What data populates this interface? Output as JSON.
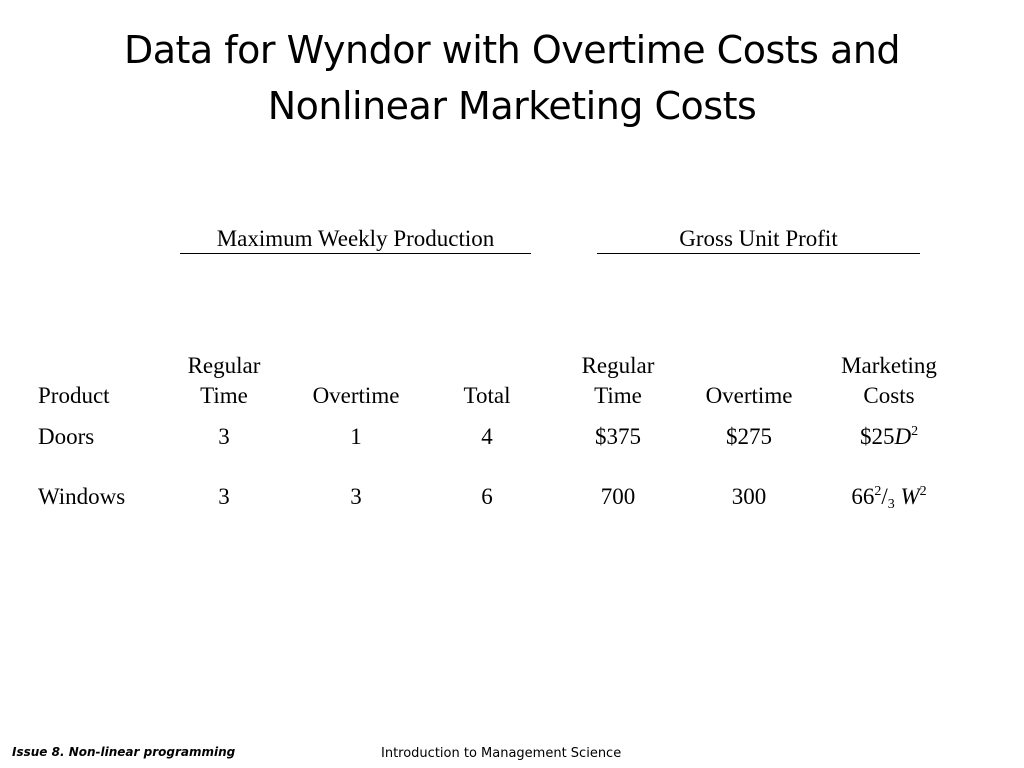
{
  "slide": {
    "title_line1": "Data for Wyndor with Overtime Costs and",
    "title_line2": "Nonlinear Marketing Costs"
  },
  "group_headers": {
    "production": "Maximum Weekly Production",
    "profit": "Gross Unit Profit"
  },
  "columns": {
    "product": "Product",
    "regular_time_1_line1": "Regular",
    "regular_time_1_line2": "Time",
    "overtime_1": "Overtime",
    "total": "Total",
    "regular_time_2_line1": "Regular",
    "regular_time_2_line2": "Time",
    "overtime_2": "Overtime",
    "marketing_line1": "Marketing",
    "marketing_line2": "Costs"
  },
  "rows": [
    {
      "product": "Doors",
      "regular_time": "3",
      "overtime": "1",
      "total": "4",
      "profit_regular": "$375",
      "profit_overtime": "$275",
      "marketing_prefix": "$25",
      "marketing_var": "D",
      "marketing_exp": "2"
    },
    {
      "product": "Windows",
      "regular_time": "3",
      "overtime": "3",
      "total": "6",
      "profit_regular": "700",
      "profit_overtime": "300",
      "marketing_prefix": "66",
      "marketing_frac_num": "2",
      "marketing_frac_slash": "/",
      "marketing_frac_den": "3",
      "marketing_var": "W",
      "marketing_exp": "2"
    }
  ],
  "footer": {
    "left": "Issue 8. Non-linear programming",
    "center": "Introduction to Management Science"
  }
}
